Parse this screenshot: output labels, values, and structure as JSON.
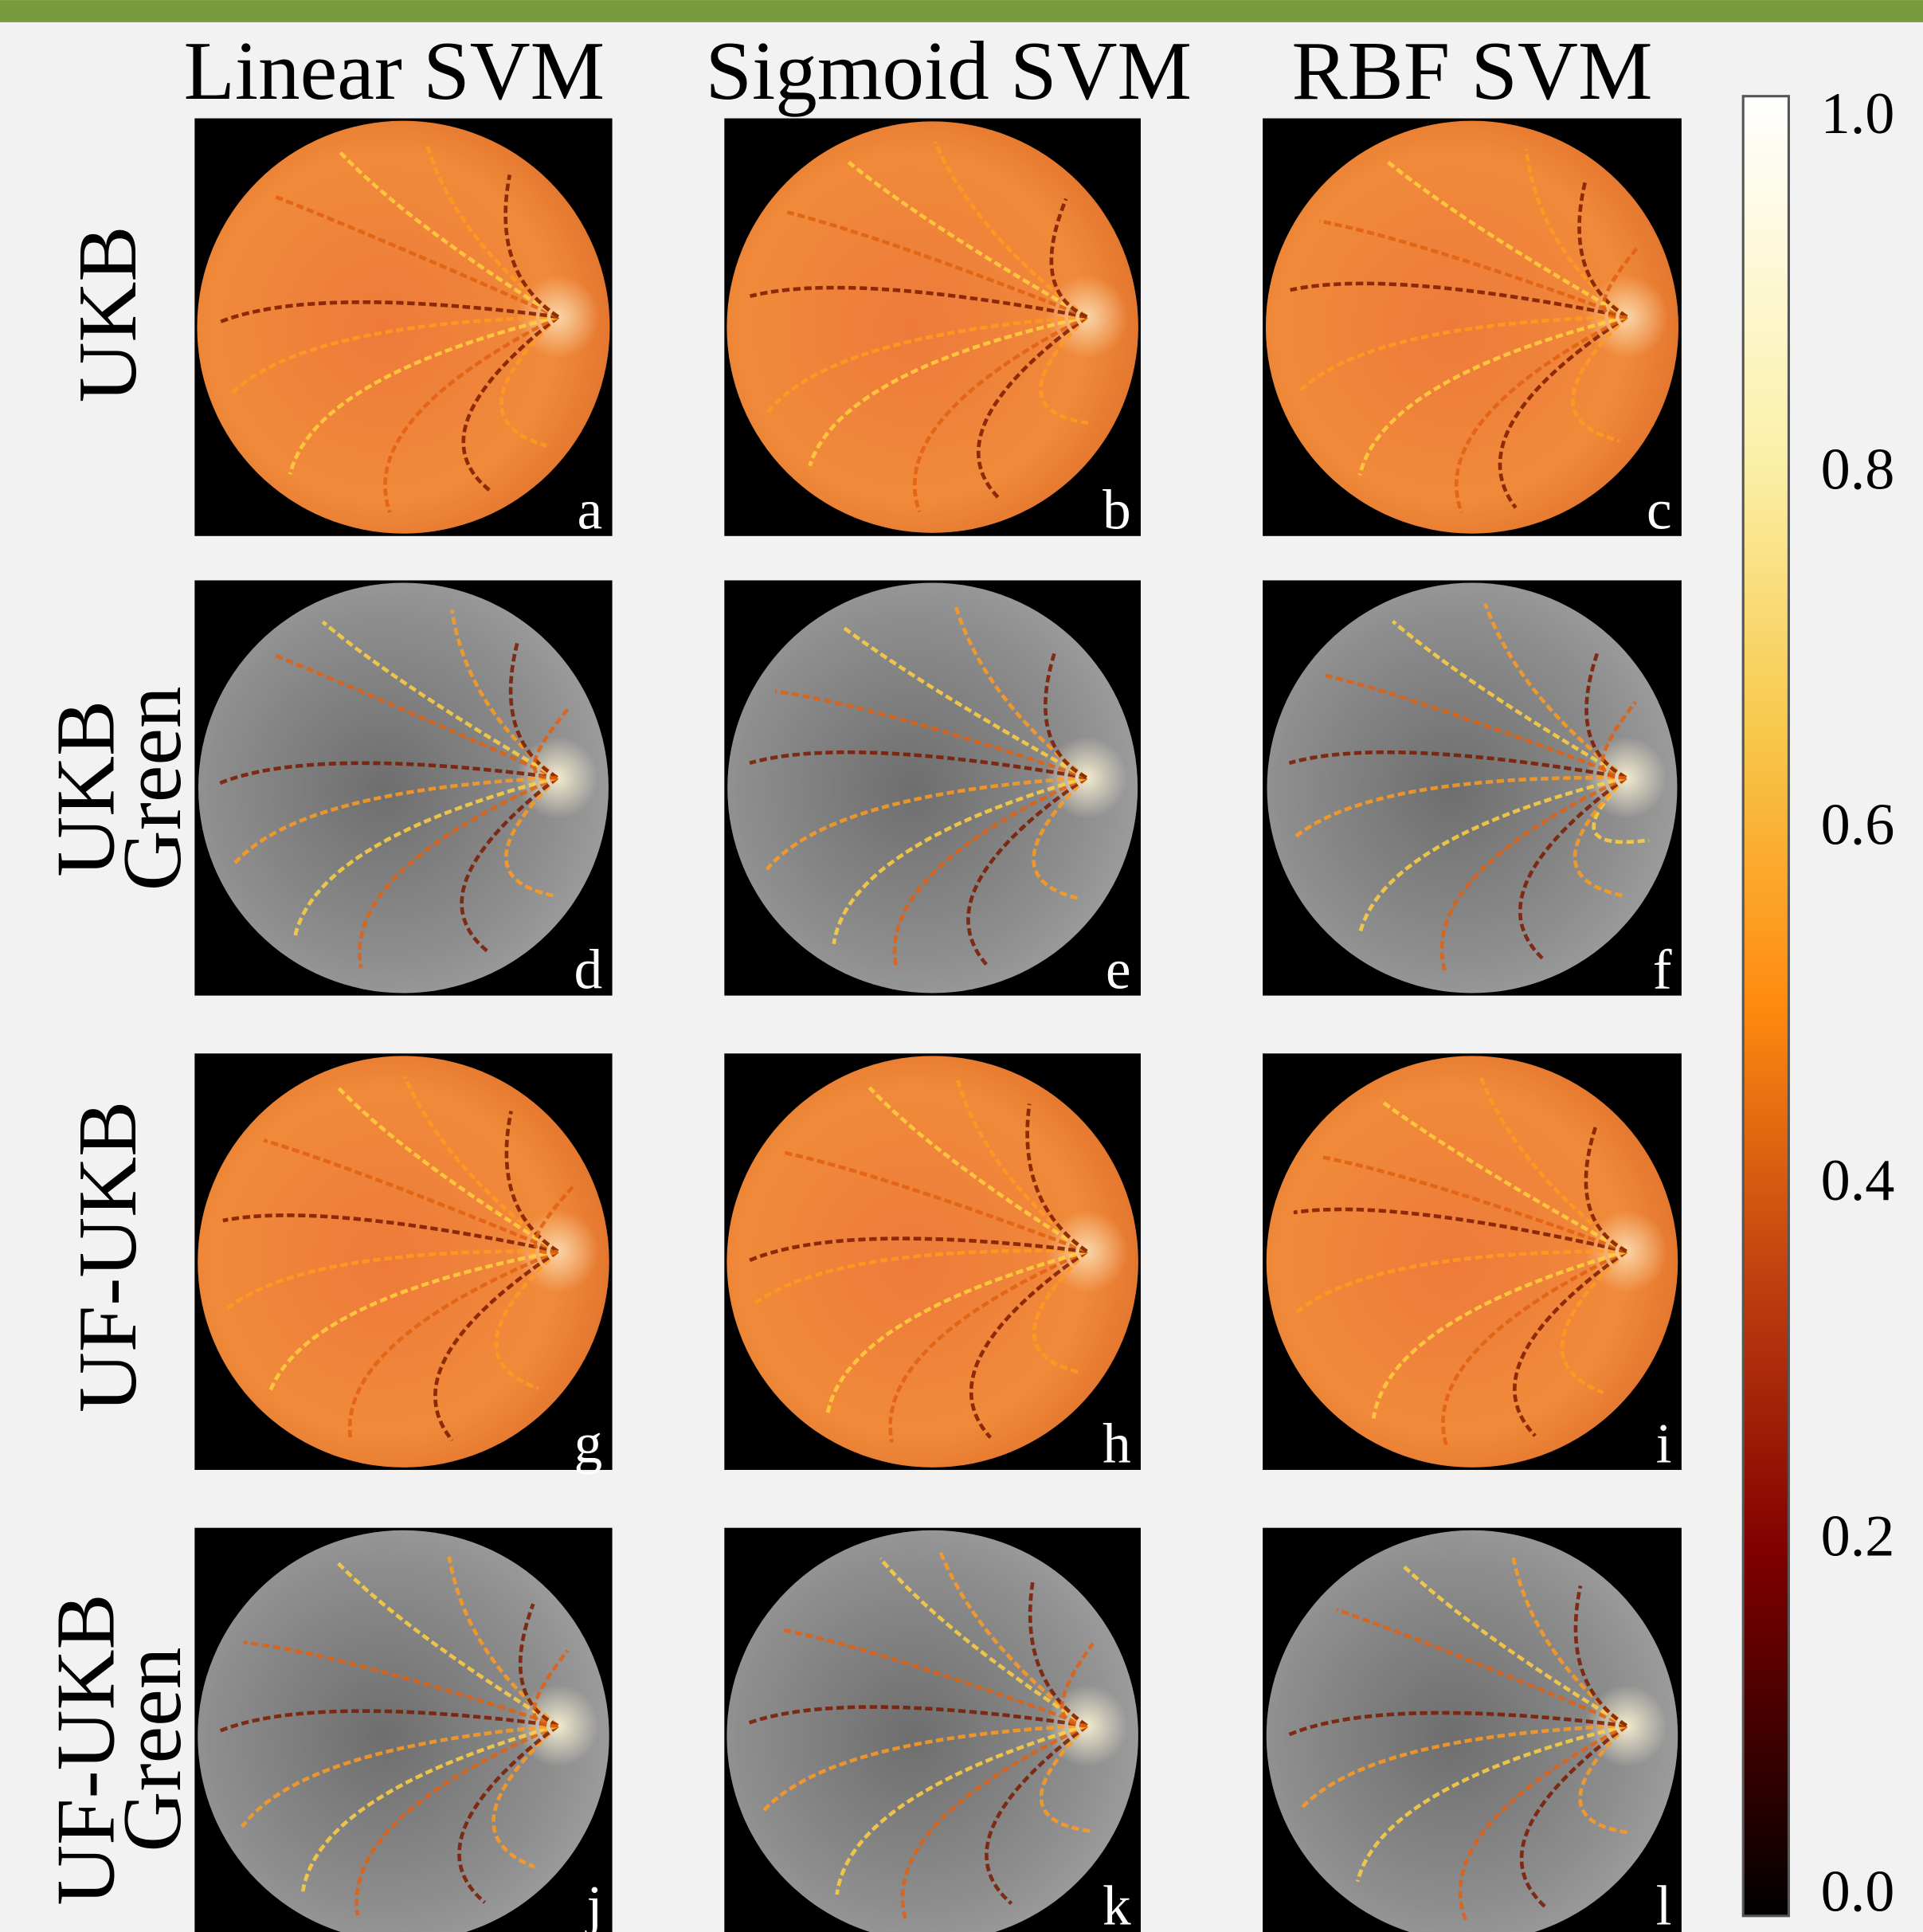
{
  "header": {
    "columns": [
      "Linear SVM",
      "Sigmoid SVM",
      "RBF SVM"
    ]
  },
  "rows": [
    {
      "lines": [
        "UKB"
      ],
      "style": "color"
    },
    {
      "lines": [
        "UKB",
        "Green"
      ],
      "style": "green"
    },
    {
      "lines": [
        "UF-UKB"
      ],
      "style": "color"
    },
    {
      "lines": [
        "UF-UKB",
        "Green"
      ],
      "style": "green"
    }
  ],
  "panels": [
    [
      "a",
      "b",
      "c"
    ],
    [
      "d",
      "e",
      "f"
    ],
    [
      "g",
      "h",
      "i"
    ],
    [
      "j",
      "k",
      "l"
    ]
  ],
  "colorbar": {
    "ticks": [
      "1.0",
      "0.8",
      "0.6",
      "0.4",
      "0.2",
      "0.0"
    ]
  }
}
